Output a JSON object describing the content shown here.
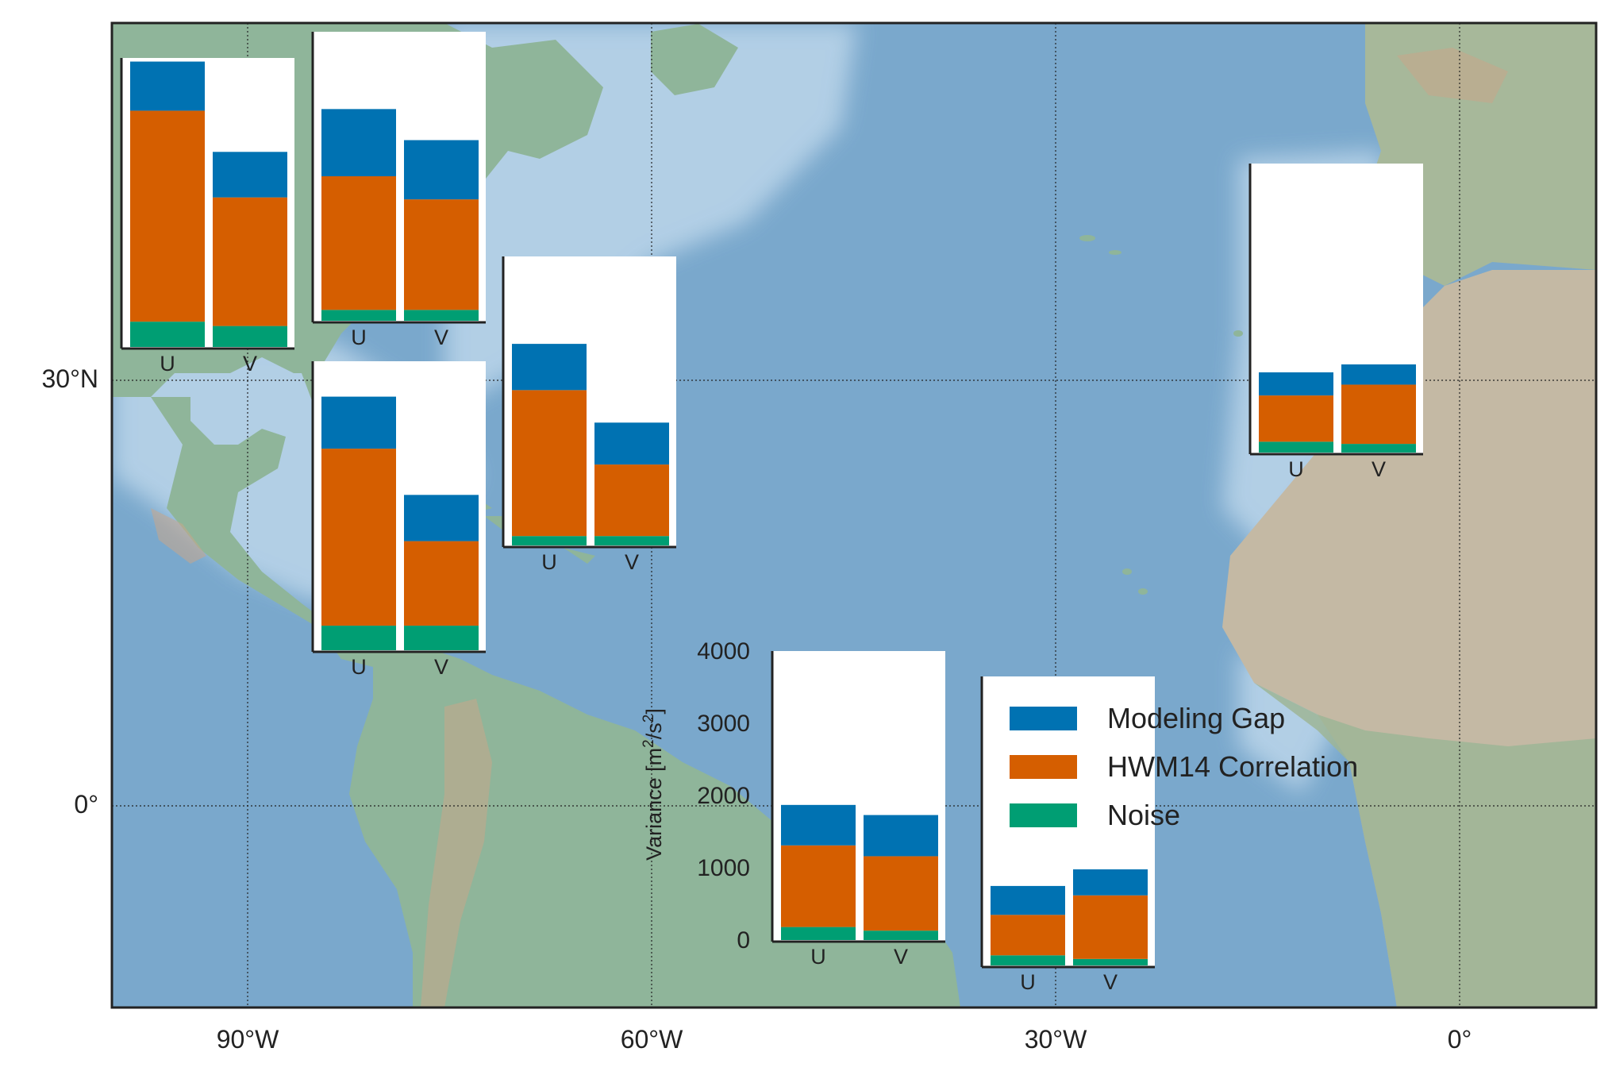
{
  "map": {
    "lon_labels": [
      "90°W",
      "60°W",
      "30°W",
      "0°"
    ],
    "lat_labels": [
      "30°N",
      "0°"
    ],
    "gridlines": "dotted",
    "colors": {
      "ocean": "#7aa8cc",
      "shelf": "#bcd6ea",
      "land": "#8fb59a",
      "desert": "#c8bca8",
      "frame": "#222222"
    }
  },
  "legend": {
    "position": "lower-center",
    "entries": [
      {
        "label": "Modeling Gap",
        "color": "#0072b2"
      },
      {
        "label": "HWM14 Correlation",
        "color": "#d55e00"
      },
      {
        "label": "Noise",
        "color": "#009e73"
      }
    ]
  },
  "chart_data": {
    "type": "bar",
    "stacked": true,
    "ylabel": "Variance [m$^2$/s$^2$]",
    "yticks": [
      "0",
      "1000",
      "2000",
      "3000",
      "4000"
    ],
    "ylim": [
      0,
      4000
    ],
    "categories": [
      "U",
      "V"
    ],
    "series_order": [
      "Noise",
      "HWM14 Correlation",
      "Modeling Gap"
    ],
    "colors": {
      "Noise": "#009e73",
      "HWM14 Correlation": "#d55e00",
      "Modeling Gap": "#0072b2"
    },
    "insets": [
      {
        "id": "site-a",
        "U": {
          "Noise": 350,
          "HWM14 Correlation": 2920,
          "Modeling Gap": 680
        },
        "V": {
          "Noise": 290,
          "HWM14 Correlation": 1780,
          "Modeling Gap": 630
        }
      },
      {
        "id": "site-b",
        "U": {
          "Noise": 150,
          "HWM14 Correlation": 1850,
          "Modeling Gap": 930
        },
        "V": {
          "Noise": 150,
          "HWM14 Correlation": 1530,
          "Modeling Gap": 820
        }
      },
      {
        "id": "site-c",
        "U": {
          "Noise": 130,
          "HWM14 Correlation": 2020,
          "Modeling Gap": 640
        },
        "V": {
          "Noise": 130,
          "HWM14 Correlation": 990,
          "Modeling Gap": 580
        }
      },
      {
        "id": "site-d",
        "U": {
          "Noise": 340,
          "HWM14 Correlation": 2450,
          "Modeling Gap": 720
        },
        "V": {
          "Noise": 340,
          "HWM14 Correlation": 1170,
          "Modeling Gap": 640
        }
      },
      {
        "id": "site-e",
        "U": {
          "Noise": 180,
          "HWM14 Correlation": 1130,
          "Modeling Gap": 560
        },
        "V": {
          "Noise": 130,
          "HWM14 Correlation": 1030,
          "Modeling Gap": 570
        }
      },
      {
        "id": "site-f",
        "U": {
          "Noise": 140,
          "HWM14 Correlation": 560,
          "Modeling Gap": 400
        },
        "V": {
          "Noise": 90,
          "HWM14 Correlation": 880,
          "Modeling Gap": 360
        }
      },
      {
        "id": "site-g",
        "U": {
          "Noise": 150,
          "HWM14 Correlation": 640,
          "Modeling Gap": 320
        },
        "V": {
          "Noise": 120,
          "HWM14 Correlation": 820,
          "Modeling Gap": 280
        }
      }
    ]
  }
}
